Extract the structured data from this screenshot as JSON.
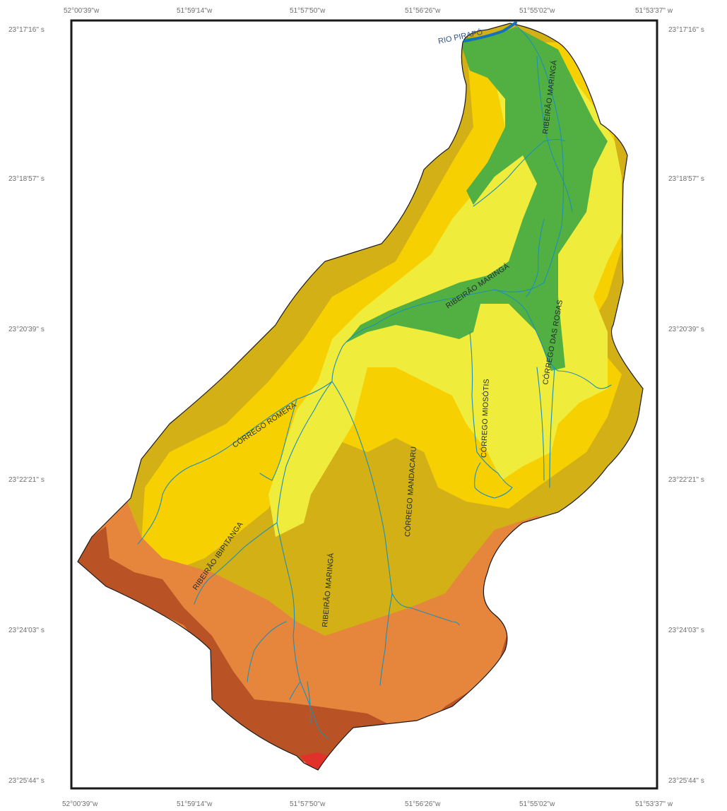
{
  "map": {
    "top_coords": [
      "52°00'39''w",
      "51°59'14''w",
      "51°57'50''w",
      "51°56'26''w",
      "51°55'02''w",
      "51°53'37'' w"
    ],
    "bottom_coords": [
      "52°00'39''w",
      "51°59'14''w",
      "51°57'50''w",
      "51°56'26''w",
      "51°55'02''w",
      "51°53'37'' w"
    ],
    "left_coords": [
      "23°17'16'' s",
      "23°18'57'' s",
      "23°20'39'' s",
      "23°22'21'' s",
      "23°24'03'' s",
      "23°25'44'' s"
    ],
    "right_coords": [
      "23°17'16'' s",
      "23°18'57'' s",
      "23°20'39'' s",
      "23°22'21'' s",
      "23°24'03'' s",
      "23°25'44'' s"
    ],
    "labels": {
      "rio_pirapo": "RIO PIRAPÓ",
      "ribeirao_maringa_north": "RIBEIRÃO MARINGÁ",
      "ribeirao_maringa_mid": "RIBEIRÃO MARINGÁ",
      "corrego_das_rosas": "CÓRREGO DAS ROSAS",
      "corrego_miosotis": "CÓRREGO MIOSÓTIS",
      "corrego_romera": "CÓRREGO ROMERA",
      "corrego_mandacaru": "CÓRREGO MANDACARU",
      "ribeirao_ibipitanga": "RIBEIRÃO IBIPITANGA",
      "ribeirao_maringa_south": "RIBEIRÃO MARINGÁ"
    },
    "colors": {
      "frame": "#1a1a1a",
      "green": "#52b043",
      "light_yellow": "#f0ec3c",
      "yellow": "#f6d000",
      "olive": "#d2b016",
      "orange": "#e6853c",
      "brown": "#b95326",
      "red": "#e0322a",
      "river": "#1d8fb8",
      "pirapo": "#1473b8"
    }
  }
}
